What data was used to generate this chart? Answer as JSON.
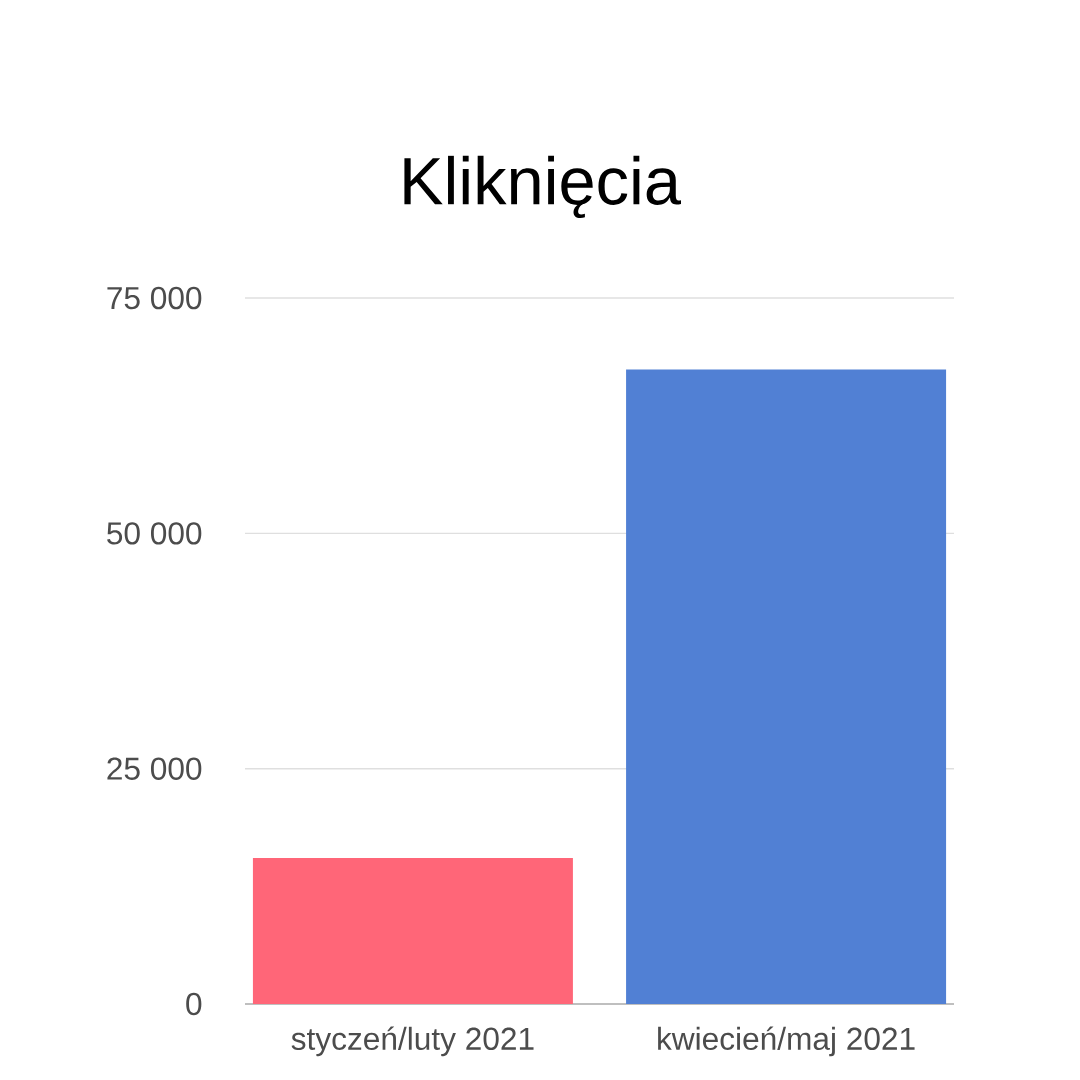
{
  "chart_data": {
    "type": "bar",
    "title": "Kliknięcia",
    "categories": [
      "styczeń/luty 2021",
      "kwiecień/maj 2021"
    ],
    "values": [
      15500,
      67400
    ],
    "colors": [
      "#ff6678",
      "#5180d4"
    ],
    "ylim": [
      0,
      75000
    ],
    "yticks": [
      {
        "value": 0,
        "label": "0"
      },
      {
        "value": 25000,
        "label": "25 000"
      },
      {
        "value": 50000,
        "label": "50 000"
      },
      {
        "value": 75000,
        "label": "75 000"
      }
    ],
    "grid": "y"
  }
}
